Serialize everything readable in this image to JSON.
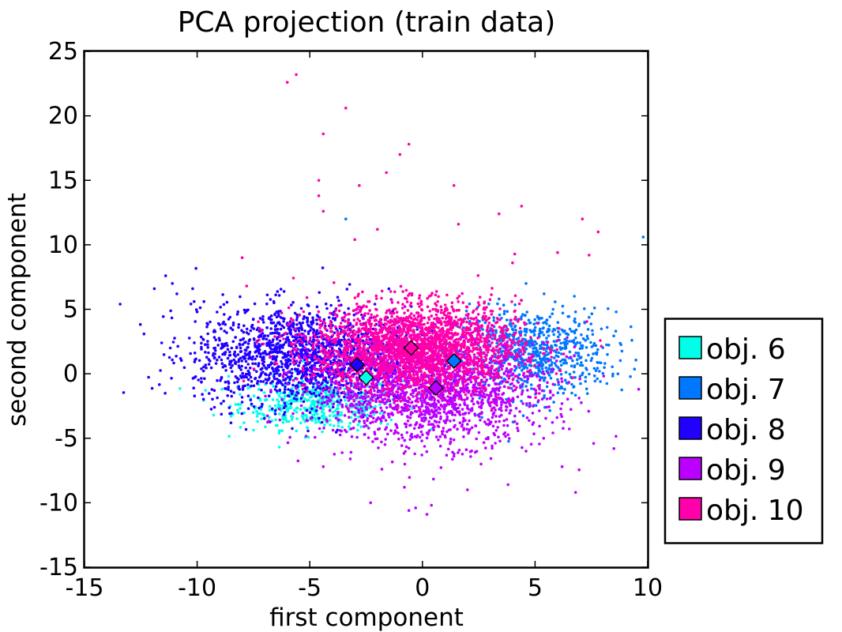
{
  "chart_data": {
    "type": "scatter",
    "title": "PCA projection (train data)",
    "xlabel": "first component",
    "ylabel": "second component",
    "xlim": [
      -15,
      10
    ],
    "ylim": [
      -15,
      25
    ],
    "xticks": [
      -15,
      -10,
      -5,
      0,
      5,
      10
    ],
    "yticks": [
      -15,
      -10,
      -5,
      0,
      5,
      10,
      15,
      20,
      25
    ],
    "xtick_labels": [
      "-15",
      "-10",
      "-5",
      "0",
      "5",
      "10"
    ],
    "ytick_labels": [
      "-15",
      "-10",
      "-5",
      "0",
      "5",
      "10",
      "15",
      "20",
      "25"
    ],
    "grid": false,
    "legend_position": "right, outside plot",
    "series": [
      {
        "name": "obj. 6",
        "color": "#00ffe8",
        "centroid": [
          -2.5,
          -0.3
        ],
        "cluster": {
          "mean": [
            -4.5,
            -2.3
          ],
          "spread": [
            1.8,
            1.0
          ]
        },
        "points": [
          [
            -7.5,
            -3.0
          ],
          [
            -6.8,
            -3.4
          ],
          [
            -6.0,
            -2.6
          ],
          [
            -5.4,
            -3.8
          ],
          [
            -4.8,
            -3.2
          ],
          [
            -4.1,
            -3.6
          ],
          [
            -3.6,
            -3.0
          ],
          [
            -3.0,
            -2.4
          ],
          [
            -5.9,
            -2.1
          ],
          [
            -8.6,
            -0.2
          ],
          [
            -8.9,
            -1.2
          ],
          [
            -6.5,
            -4.0
          ],
          [
            -5.1,
            -4.2
          ],
          [
            -4.4,
            -2.0
          ],
          [
            -7.2,
            -2.6
          ],
          [
            -3.3,
            -1.8
          ],
          [
            -2.6,
            -2.8
          ],
          [
            -8.1,
            -1.6
          ]
        ]
      },
      {
        "name": "obj. 7",
        "color": "#0077ff",
        "centroid": [
          1.4,
          1.0
        ],
        "cluster": {
          "mean": [
            4.8,
            1.6
          ],
          "spread": [
            1.7,
            1.7
          ]
        },
        "points": [
          [
            7.2,
            4.0
          ],
          [
            8.6,
            4.8
          ],
          [
            9.3,
            2.6
          ],
          [
            8.1,
            0.8
          ],
          [
            6.8,
            4.8
          ],
          [
            5.4,
            6.2
          ],
          [
            4.6,
            7.0
          ],
          [
            7.9,
            -0.6
          ],
          [
            6.2,
            3.4
          ],
          [
            -3.4,
            12.0
          ],
          [
            9.8,
            10.6
          ],
          [
            3.4,
            5.8
          ],
          [
            6.6,
            1.2
          ],
          [
            7.6,
            2.2
          ],
          [
            5.8,
            5.0
          ],
          [
            4.2,
            4.2
          ],
          [
            8.2,
            3.6
          ],
          [
            7.0,
            -0.2
          ]
        ]
      },
      {
        "name": "obj. 8",
        "color": "#2200ff",
        "centroid": [
          -2.9,
          0.7
        ],
        "cluster": {
          "mean": [
            -5.3,
            1.4
          ],
          "spread": [
            2.4,
            1.9
          ]
        },
        "points": [
          [
            -11.9,
            6.6
          ],
          [
            -11.4,
            7.6
          ],
          [
            -10.2,
            6.6
          ],
          [
            -9.7,
            5.6
          ],
          [
            -8.8,
            4.6
          ],
          [
            -7.8,
            3.2
          ],
          [
            -9.2,
            2.0
          ],
          [
            -8.5,
            -3.8
          ],
          [
            -6.6,
            5.6
          ],
          [
            -10.9,
            6.2
          ],
          [
            -9.0,
            3.8
          ],
          [
            -7.1,
            4.2
          ],
          [
            -10.0,
            4.8
          ],
          [
            -8.0,
            -2.2
          ],
          [
            -11.1,
            7.0
          ],
          [
            -6.0,
            3.8
          ]
        ]
      },
      {
        "name": "obj. 9",
        "color": "#bb00ff",
        "centroid": [
          0.6,
          -1.1
        ],
        "cluster": {
          "mean": [
            0.3,
            -1.4
          ],
          "spread": [
            2.6,
            2.0
          ]
        },
        "points": [
          [
            -0.3,
            -10.4
          ],
          [
            0.2,
            -10.9
          ],
          [
            0.4,
            -10.2
          ],
          [
            -0.6,
            -10.6
          ],
          [
            -1.8,
            -7.4
          ],
          [
            -3.2,
            -6.6
          ],
          [
            -4.4,
            -7.2
          ],
          [
            2.6,
            -7.0
          ],
          [
            3.8,
            -8.6
          ],
          [
            6.2,
            -7.2
          ],
          [
            7.6,
            -5.4
          ],
          [
            8.5,
            -5.8
          ],
          [
            9.6,
            -1.2
          ],
          [
            -2.3,
            -10.0
          ],
          [
            -0.8,
            -8.8
          ],
          [
            1.4,
            -6.4
          ],
          [
            4.6,
            -6.0
          ],
          [
            6.8,
            -9.2
          ],
          [
            2.0,
            -9.0
          ]
        ]
      },
      {
        "name": "obj. 10",
        "color": "#ff00aa",
        "centroid": [
          -0.5,
          2.0
        ],
        "cluster": {
          "mean": [
            -0.3,
            2.0
          ],
          "spread": [
            2.3,
            1.7
          ]
        },
        "points": [
          [
            -6.0,
            22.6
          ],
          [
            -5.6,
            23.2
          ],
          [
            -3.4,
            20.6
          ],
          [
            -4.4,
            18.6
          ],
          [
            -0.6,
            17.8
          ],
          [
            -1.6,
            15.6
          ],
          [
            -4.6,
            15.0
          ],
          [
            -4.6,
            13.8
          ],
          [
            -2.8,
            14.6
          ],
          [
            1.4,
            14.6
          ],
          [
            4.4,
            13.0
          ],
          [
            7.1,
            12.0
          ],
          [
            7.8,
            11.0
          ],
          [
            -4.4,
            12.6
          ],
          [
            -3.0,
            10.4
          ],
          [
            -2.0,
            11.2
          ],
          [
            3.4,
            12.4
          ],
          [
            4.0,
            8.6
          ],
          [
            6.0,
            9.4
          ],
          [
            7.4,
            9.2
          ],
          [
            -8.0,
            9.0
          ],
          [
            -7.8,
            6.8
          ],
          [
            -1.0,
            17.0
          ],
          [
            1.6,
            11.6
          ]
        ]
      }
    ]
  }
}
